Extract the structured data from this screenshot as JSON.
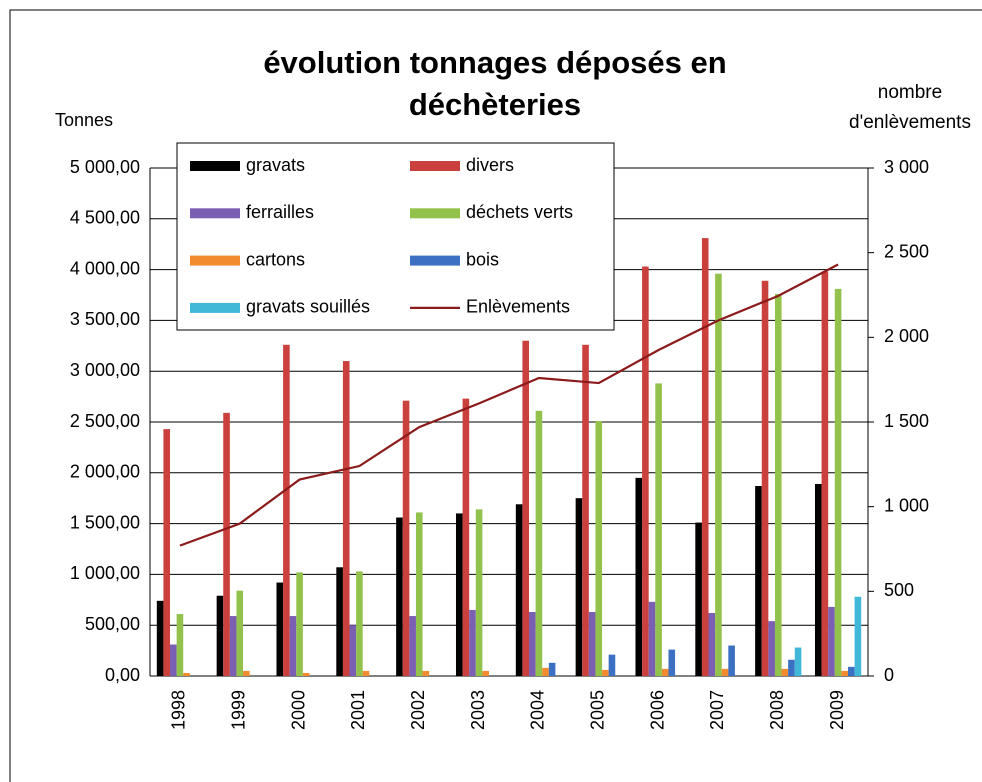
{
  "chart_data": {
    "type": "bar",
    "title": "évolution tonnages déposés en déchèteries",
    "y_label": "Tonnes",
    "y2_label": "nombre d'enlèvements",
    "categories": [
      "1998",
      "1999",
      "2000",
      "2001",
      "2002",
      "2003",
      "2004",
      "2005",
      "2006",
      "2007",
      "2008",
      "2009"
    ],
    "series": [
      {
        "name": "gravats",
        "color": "#000000",
        "values": [
          740,
          790,
          920,
          1070,
          1560,
          1600,
          1690,
          1750,
          1950,
          1510,
          1870,
          1890
        ]
      },
      {
        "name": "divers",
        "color": "#c9403d",
        "values": [
          2430,
          2590,
          3260,
          3100,
          2710,
          2730,
          3300,
          3260,
          4030,
          4310,
          3890,
          3980
        ]
      },
      {
        "name": "ferrailles",
        "color": "#7b5fb2",
        "values": [
          310,
          590,
          590,
          500,
          590,
          650,
          630,
          630,
          730,
          620,
          540,
          680
        ]
      },
      {
        "name": "déchets verts",
        "color": "#93c24c",
        "values": [
          610,
          840,
          1020,
          1030,
          1610,
          1640,
          2610,
          2510,
          2880,
          3960,
          3760,
          3810
        ]
      },
      {
        "name": "cartons",
        "color": "#f28a30",
        "values": [
          30,
          50,
          30,
          50,
          50,
          50,
          80,
          60,
          70,
          70,
          70,
          50
        ]
      },
      {
        "name": "bois",
        "color": "#3c70c2",
        "values": [
          0,
          0,
          0,
          0,
          0,
          0,
          130,
          210,
          260,
          300,
          160,
          90
        ]
      },
      {
        "name": "gravats souillés",
        "color": "#42b8d8",
        "values": [
          0,
          0,
          0,
          0,
          0,
          0,
          0,
          0,
          0,
          0,
          280,
          780
        ]
      },
      {
        "name": "Enlèvements",
        "color": "#8b1a1a",
        "type": "line",
        "axis": "y2",
        "values": [
          770,
          900,
          1160,
          1240,
          1470,
          1610,
          1760,
          1730,
          1925,
          2100,
          2245,
          2430
        ]
      }
    ],
    "ylim": [
      0,
      5000
    ],
    "yticks": [
      {
        "value": 0,
        "label": "0,00"
      },
      {
        "value": 500,
        "label": "500,00"
      },
      {
        "value": 1000,
        "label": "1 000,00"
      },
      {
        "value": 1500,
        "label": "1 500,00"
      },
      {
        "value": 2000,
        "label": "2 000,00"
      },
      {
        "value": 2500,
        "label": "2 500,00"
      },
      {
        "value": 3000,
        "label": "3 000,00"
      },
      {
        "value": 3500,
        "label": "3 500,00"
      },
      {
        "value": 4000,
        "label": "4 000,00"
      },
      {
        "value": 4500,
        "label": "4 500,00"
      },
      {
        "value": 5000,
        "label": "5 000,00"
      }
    ],
    "y2lim": [
      0,
      3000
    ],
    "y2ticks": [
      0,
      500,
      {
        "value": 1000,
        "label": "1 000"
      },
      {
        "value": 1500,
        "label": "1 500"
      },
      {
        "value": 2000,
        "label": "2 000"
      },
      {
        "value": 2500,
        "label": "2 500"
      },
      {
        "value": 3000,
        "label": "3 000"
      }
    ],
    "grid": true
  }
}
